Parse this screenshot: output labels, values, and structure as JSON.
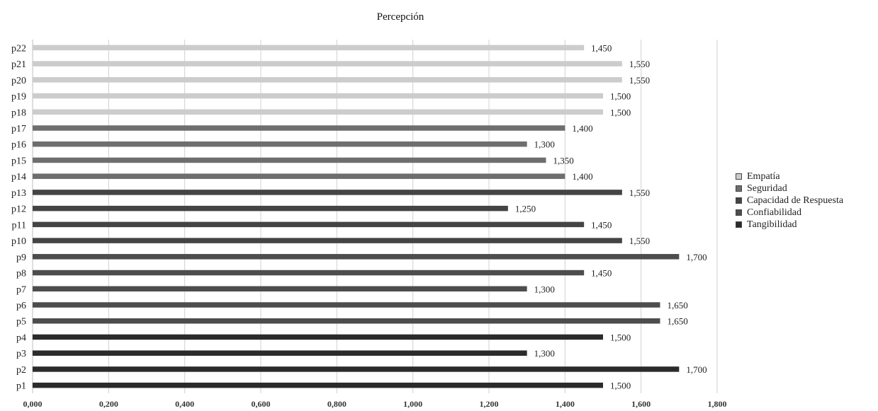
{
  "chart_data": {
    "type": "bar",
    "orientation": "horizontal",
    "title": "Percepción",
    "xlim": [
      0,
      1.8
    ],
    "x_ticks": [
      "0,000",
      "0,200",
      "0,400",
      "0,600",
      "0,800",
      "1,000",
      "1,200",
      "1,400",
      "1,600",
      "1,800"
    ],
    "grid": "vertical",
    "legend_position": "right",
    "series": [
      {
        "name": "Tangibilidad",
        "color": "#2b2b2b",
        "categories": [
          "p1",
          "p2",
          "p3",
          "p4"
        ],
        "values": [
          1.5,
          1.7,
          1.3,
          1.5
        ],
        "labels": [
          "1,500",
          "1,700",
          "1,300",
          "1,500"
        ]
      },
      {
        "name": "Confiabilidad",
        "color": "#4d4d4d",
        "categories": [
          "p5",
          "p6",
          "p7",
          "p8",
          "p9"
        ],
        "values": [
          1.65,
          1.65,
          1.3,
          1.45,
          1.7
        ],
        "labels": [
          "1,650",
          "1,650",
          "1,300",
          "1,450",
          "1,700"
        ]
      },
      {
        "name": "Capacidad de Respuesta",
        "color": "#444444",
        "categories": [
          "p10",
          "p11",
          "p12",
          "p13"
        ],
        "values": [
          1.55,
          1.45,
          1.25,
          1.55
        ],
        "labels": [
          "1,550",
          "1,450",
          "1,250",
          "1,550"
        ]
      },
      {
        "name": "Seguridad",
        "color": "#6e6e6e",
        "categories": [
          "p14",
          "p15",
          "p16",
          "p17"
        ],
        "values": [
          1.4,
          1.35,
          1.3,
          1.4
        ],
        "labels": [
          "1,400",
          "1,350",
          "1,300",
          "1,400"
        ]
      },
      {
        "name": "Empatía",
        "color": "#cccccc",
        "categories": [
          "p18",
          "p19",
          "p20",
          "p21",
          "p22"
        ],
        "values": [
          1.5,
          1.5,
          1.55,
          1.55,
          1.45
        ],
        "labels": [
          "1,500",
          "1,500",
          "1,550",
          "1,550",
          "1,450"
        ]
      }
    ],
    "legend_order": [
      "Empatía",
      "Seguridad",
      "Capacidad de Respuesta",
      "Confiabilidad",
      "Tangibilidad"
    ]
  }
}
